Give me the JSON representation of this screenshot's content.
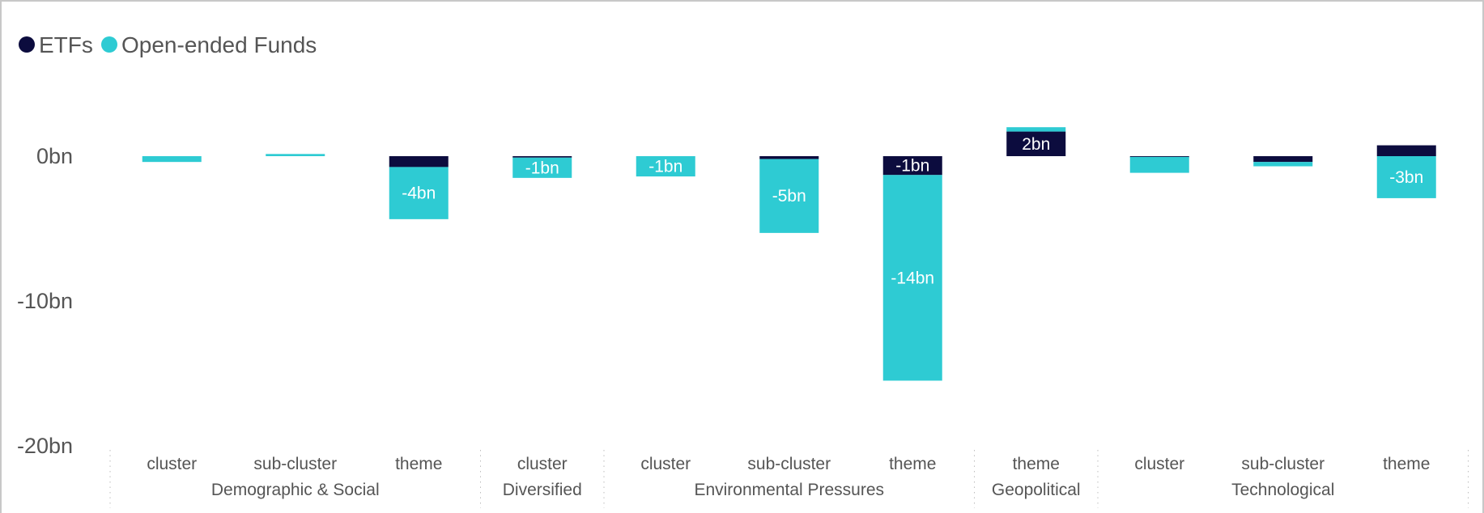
{
  "chart_data": {
    "type": "bar",
    "stacked": true,
    "legend": {
      "position": "top-left",
      "items": [
        {
          "name": "ETFs",
          "color": "#0c0c3e"
        },
        {
          "name": "Open-ended Funds",
          "color": "#2ecbd3"
        }
      ]
    },
    "y_ticks": [
      {
        "value": 0,
        "label": "0bn"
      },
      {
        "value": -10,
        "label": "-10bn"
      },
      {
        "value": -20,
        "label": "-20bn"
      }
    ],
    "ylim": [
      -20,
      3
    ],
    "grid": false,
    "groups": [
      {
        "name": "Demographic & Social",
        "categories": [
          "cluster",
          "sub-cluster",
          "theme"
        ]
      },
      {
        "name": "Diversified",
        "categories": [
          "cluster"
        ]
      },
      {
        "name": "Environmental Pressures",
        "categories": [
          "cluster",
          "sub-cluster",
          "theme"
        ]
      },
      {
        "name": "Geopolitical",
        "categories": [
          "theme"
        ]
      },
      {
        "name": "Technological",
        "categories": [
          "cluster",
          "sub-cluster",
          "theme"
        ]
      }
    ],
    "series": [
      {
        "name": "ETFs",
        "color": "#0c0c3e",
        "values": [
          0,
          0,
          -0.75,
          -0.1,
          0,
          -0.2,
          -1.3,
          1.7,
          -0.05,
          -0.4,
          0.75
        ],
        "labels": [
          "",
          "",
          "",
          "",
          "",
          "",
          "-1bn",
          "2bn",
          "",
          "",
          ""
        ]
      },
      {
        "name": "Open-ended Funds",
        "color": "#2ecbd3",
        "values": [
          -0.4,
          0.15,
          -3.6,
          -1.4,
          -1.4,
          -5.1,
          -14.2,
          0.3,
          -1.1,
          -0.3,
          -2.9
        ],
        "labels": [
          "",
          "",
          "-4bn",
          "-1bn",
          "-1bn",
          "-5bn",
          "-14bn",
          "",
          "",
          "",
          "-3bn"
        ]
      }
    ]
  }
}
